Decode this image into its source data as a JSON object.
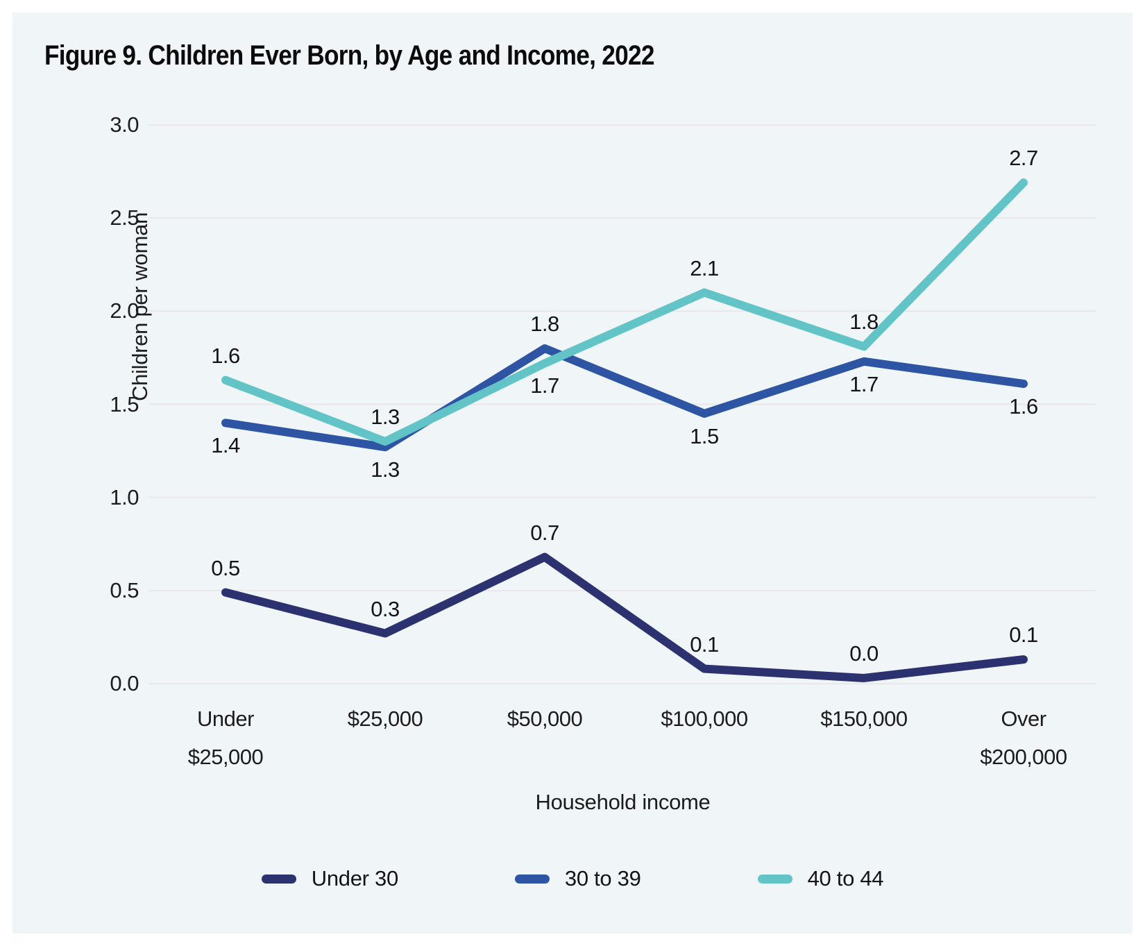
{
  "figure": {
    "title": "Figure 9. Children Ever Born, by Age and Income, 2022"
  },
  "chart_data": {
    "type": "line",
    "title": "Figure 9. Children Ever Born, by Age and Income, 2022",
    "xlabel": "Household income",
    "ylabel": "Children per woman",
    "categories": [
      "Under\n$25,000",
      "$25,000",
      "$50,000",
      "$100,000",
      "$150,000",
      "Over\n$200,000"
    ],
    "y_ticks": [
      "3.0",
      "2.5",
      "2.0",
      "1.5",
      "1.0",
      "0.5",
      "0.0"
    ],
    "ylim": [
      0,
      3
    ],
    "grid": "horizontal",
    "legend_position": "bottom",
    "series": [
      {
        "name": "Under 30",
        "color": "#2c3170",
        "values": [
          0.5,
          0.3,
          0.7,
          0.1,
          0.0,
          0.1
        ],
        "labels": [
          "0.5",
          "0.3",
          "0.7",
          "0.1",
          "0.0",
          "0.1"
        ],
        "label_side": [
          "above",
          "above",
          "above",
          "above",
          "above",
          "above"
        ],
        "as_drawn_values": [
          0.49,
          0.27,
          0.68,
          0.08,
          0.03,
          0.13
        ]
      },
      {
        "name": "30 to 39",
        "color": "#2e54a4",
        "values": [
          1.4,
          1.3,
          1.8,
          1.5,
          1.7,
          1.6
        ],
        "labels": [
          "1.4",
          "1.3",
          "1.8",
          "1.5",
          "1.7",
          "1.6"
        ],
        "label_side": [
          "below",
          "below",
          "above",
          "below",
          "below",
          "below"
        ],
        "as_drawn_values": [
          1.4,
          1.27,
          1.8,
          1.45,
          1.73,
          1.61
        ]
      },
      {
        "name": "40 to 44",
        "color": "#62c4c7",
        "values": [
          1.6,
          1.3,
          1.7,
          2.1,
          1.8,
          2.7
        ],
        "labels": [
          "1.6",
          "1.3",
          "1.7",
          "2.1",
          "1.8",
          "2.7"
        ],
        "label_side": [
          "above",
          "above",
          "below",
          "above",
          "above",
          "above"
        ],
        "as_drawn_values": [
          1.63,
          1.3,
          1.72,
          2.1,
          1.81,
          2.69
        ]
      }
    ]
  },
  "colors": {
    "page_background": "#ffffff",
    "panel_background": "#f0f6f7",
    "gridline": "#e9e7e7",
    "text": "#141414"
  }
}
